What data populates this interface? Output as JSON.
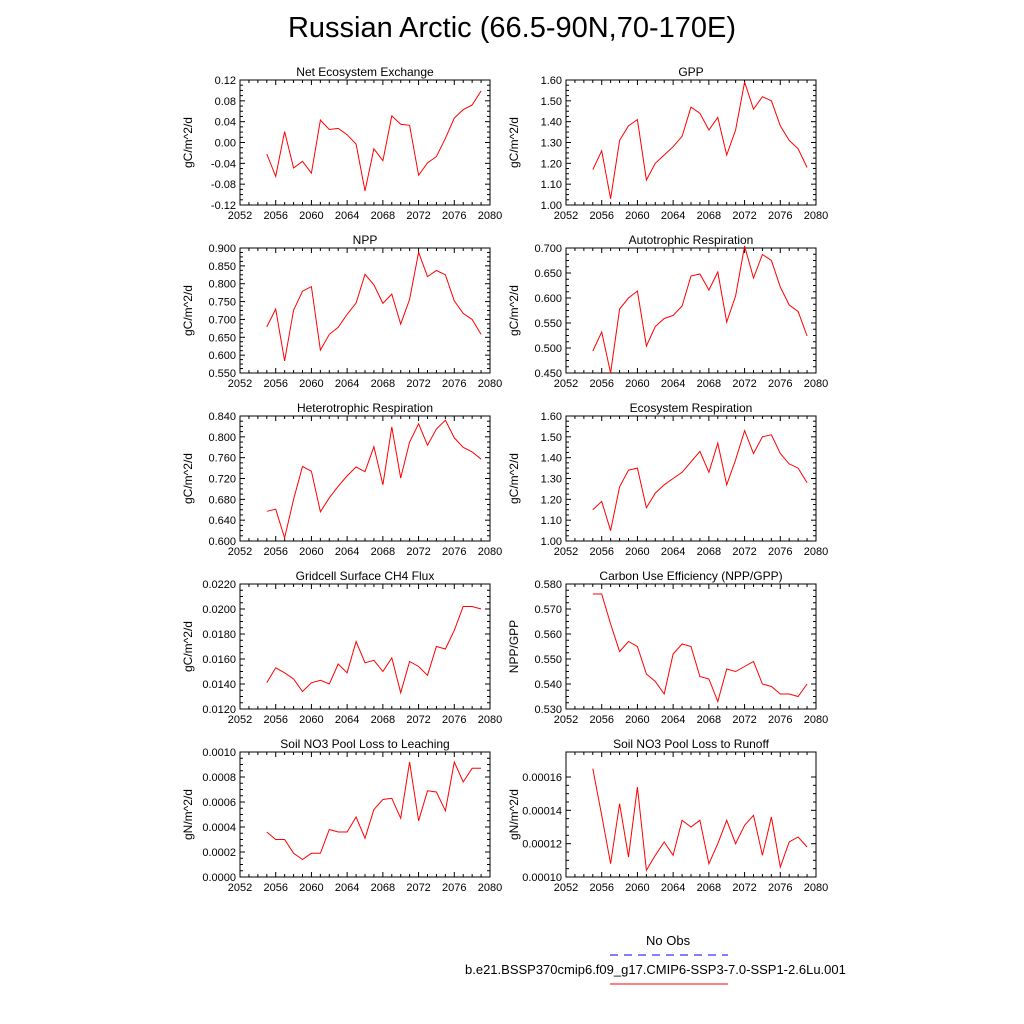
{
  "figure": {
    "title": "Russian Arctic (66.5-90N,70-170E)"
  },
  "legend": {
    "items": [
      {
        "label": "No Obs",
        "color": "#0000ff",
        "style": "dashed"
      },
      {
        "label": "b.e21.BSSP370cmip6.f09_g17.CMIP6-SSP3-7.0-SSP1-2.6Lu.001",
        "color": "#ff0000",
        "style": "solid"
      }
    ]
  },
  "chart_data": [
    {
      "type": "line",
      "title": "Net Ecosystem Exchange",
      "ylabel": "gC/m^2/d",
      "xlim": [
        2052,
        2080
      ],
      "ylim": [
        -0.12,
        0.12
      ],
      "xticks": [
        "2052",
        "2056",
        "2060",
        "2064",
        "2068",
        "2072",
        "2076",
        "2080"
      ],
      "yticks": [
        "-0.12",
        "-0.08",
        "-0.04",
        "0.00",
        "0.04",
        "0.08",
        "0.12"
      ],
      "line_color": "#ff0000",
      "x": [
        2055,
        2056,
        2057,
        2058,
        2059,
        2060,
        2061,
        2062,
        2063,
        2064,
        2065,
        2066,
        2067,
        2068,
        2069,
        2070,
        2071,
        2072,
        2073,
        2074,
        2075,
        2076,
        2077,
        2078,
        2079
      ],
      "y": [
        -0.022,
        -0.065,
        0.021,
        -0.049,
        -0.036,
        -0.059,
        0.043,
        0.025,
        0.027,
        0.015,
        -0.003,
        -0.093,
        -0.012,
        -0.035,
        0.051,
        0.035,
        0.033,
        -0.063,
        -0.039,
        -0.027,
        0.008,
        0.047,
        0.063,
        0.072,
        0.099
      ]
    },
    {
      "type": "line",
      "title": "GPP",
      "ylabel": "gC/m^2/d",
      "xlim": [
        2052,
        2080
      ],
      "ylim": [
        1.0,
        1.6
      ],
      "xticks": [
        "2052",
        "2056",
        "2060",
        "2064",
        "2068",
        "2072",
        "2076",
        "2080"
      ],
      "yticks": [
        "1.00",
        "1.10",
        "1.20",
        "1.30",
        "1.40",
        "1.50",
        "1.60"
      ],
      "line_color": "#ff0000",
      "x": [
        2055,
        2056,
        2057,
        2058,
        2059,
        2060,
        2061,
        2062,
        2063,
        2064,
        2065,
        2066,
        2067,
        2068,
        2069,
        2070,
        2071,
        2072,
        2073,
        2074,
        2075,
        2076,
        2077,
        2078,
        2079
      ],
      "y": [
        1.17,
        1.26,
        1.03,
        1.31,
        1.38,
        1.41,
        1.12,
        1.2,
        1.24,
        1.28,
        1.33,
        1.47,
        1.44,
        1.36,
        1.42,
        1.24,
        1.36,
        1.59,
        1.46,
        1.52,
        1.5,
        1.38,
        1.31,
        1.27,
        1.18
      ]
    },
    {
      "type": "line",
      "title": "NPP",
      "ylabel": "gC/m^2/d",
      "xlim": [
        2052,
        2080
      ],
      "ylim": [
        0.55,
        0.9
      ],
      "xticks": [
        "2052",
        "2056",
        "2060",
        "2064",
        "2068",
        "2072",
        "2076",
        "2080"
      ],
      "yticks": [
        "0.550",
        "0.600",
        "0.650",
        "0.700",
        "0.750",
        "0.800",
        "0.850",
        "0.900"
      ],
      "line_color": "#ff0000",
      "x": [
        2055,
        2056,
        2057,
        2058,
        2059,
        2060,
        2061,
        2062,
        2063,
        2064,
        2065,
        2066,
        2067,
        2068,
        2069,
        2070,
        2071,
        2072,
        2073,
        2074,
        2075,
        2076,
        2077,
        2078,
        2079
      ],
      "y": [
        0.679,
        0.729,
        0.584,
        0.726,
        0.779,
        0.792,
        0.614,
        0.658,
        0.678,
        0.714,
        0.746,
        0.826,
        0.797,
        0.745,
        0.771,
        0.687,
        0.756,
        0.888,
        0.82,
        0.837,
        0.825,
        0.752,
        0.717,
        0.7,
        0.658
      ]
    },
    {
      "type": "line",
      "title": "Autotrophic Respiration",
      "ylabel": "gC/m^2/d",
      "xlim": [
        2052,
        2080
      ],
      "ylim": [
        0.45,
        0.7
      ],
      "xticks": [
        "2052",
        "2056",
        "2060",
        "2064",
        "2068",
        "2072",
        "2076",
        "2080"
      ],
      "yticks": [
        "0.450",
        "0.500",
        "0.550",
        "0.600",
        "0.650",
        "0.700"
      ],
      "line_color": "#ff0000",
      "x": [
        2055,
        2056,
        2057,
        2058,
        2059,
        2060,
        2061,
        2062,
        2063,
        2064,
        2065,
        2066,
        2067,
        2068,
        2069,
        2070,
        2071,
        2072,
        2073,
        2074,
        2075,
        2076,
        2077,
        2078,
        2079
      ],
      "y": [
        0.494,
        0.532,
        0.45,
        0.578,
        0.6,
        0.614,
        0.504,
        0.543,
        0.559,
        0.565,
        0.584,
        0.644,
        0.648,
        0.616,
        0.652,
        0.552,
        0.604,
        0.704,
        0.64,
        0.687,
        0.675,
        0.622,
        0.586,
        0.573,
        0.524
      ]
    },
    {
      "type": "line",
      "title": "Heterotrophic Respiration",
      "ylabel": "gC/m^2/d",
      "xlim": [
        2052,
        2080
      ],
      "ylim": [
        0.6,
        0.84
      ],
      "xticks": [
        "2052",
        "2056",
        "2060",
        "2064",
        "2068",
        "2072",
        "2076",
        "2080"
      ],
      "yticks": [
        "0.600",
        "0.640",
        "0.680",
        "0.720",
        "0.760",
        "0.800",
        "0.840"
      ],
      "line_color": "#ff0000",
      "x": [
        2055,
        2056,
        2057,
        2058,
        2059,
        2060,
        2061,
        2062,
        2063,
        2064,
        2065,
        2066,
        2067,
        2068,
        2069,
        2070,
        2071,
        2072,
        2073,
        2074,
        2075,
        2076,
        2077,
        2078,
        2079
      ],
      "y": [
        0.657,
        0.661,
        0.606,
        0.68,
        0.743,
        0.734,
        0.656,
        0.683,
        0.705,
        0.725,
        0.742,
        0.733,
        0.781,
        0.708,
        0.819,
        0.721,
        0.79,
        0.825,
        0.784,
        0.815,
        0.832,
        0.798,
        0.78,
        0.771,
        0.757
      ]
    },
    {
      "type": "line",
      "title": "Ecosystem Respiration",
      "ylabel": "gC/m^2/d",
      "xlim": [
        2052,
        2080
      ],
      "ylim": [
        1.0,
        1.6
      ],
      "xticks": [
        "2052",
        "2056",
        "2060",
        "2064",
        "2068",
        "2072",
        "2076",
        "2080"
      ],
      "yticks": [
        "1.00",
        "1.10",
        "1.20",
        "1.30",
        "1.40",
        "1.50",
        "1.60"
      ],
      "line_color": "#ff0000",
      "x": [
        2055,
        2056,
        2057,
        2058,
        2059,
        2060,
        2061,
        2062,
        2063,
        2064,
        2065,
        2066,
        2067,
        2068,
        2069,
        2070,
        2071,
        2072,
        2073,
        2074,
        2075,
        2076,
        2077,
        2078,
        2079
      ],
      "y": [
        1.15,
        1.19,
        1.05,
        1.26,
        1.34,
        1.35,
        1.16,
        1.23,
        1.27,
        1.3,
        1.33,
        1.38,
        1.43,
        1.33,
        1.47,
        1.27,
        1.39,
        1.53,
        1.42,
        1.5,
        1.51,
        1.42,
        1.37,
        1.35,
        1.28
      ]
    },
    {
      "type": "line",
      "title": "Gridcell Surface CH4 Flux",
      "ylabel": "gC/m^2/d",
      "xlim": [
        2052,
        2080
      ],
      "ylim": [
        0.012,
        0.022
      ],
      "xticks": [
        "2052",
        "2056",
        "2060",
        "2064",
        "2068",
        "2072",
        "2076",
        "2080"
      ],
      "yticks": [
        "0.0120",
        "0.0140",
        "0.0160",
        "0.0180",
        "0.0200",
        "0.0220"
      ],
      "line_color": "#ff0000",
      "x": [
        2055,
        2056,
        2057,
        2058,
        2059,
        2060,
        2061,
        2062,
        2063,
        2064,
        2065,
        2066,
        2067,
        2068,
        2069,
        2070,
        2071,
        2072,
        2073,
        2074,
        2075,
        2076,
        2077,
        2078,
        2079
      ],
      "y": [
        0.0141,
        0.0153,
        0.0149,
        0.0144,
        0.0134,
        0.0141,
        0.0143,
        0.014,
        0.0156,
        0.0149,
        0.0174,
        0.0157,
        0.0159,
        0.015,
        0.0161,
        0.0133,
        0.0158,
        0.0154,
        0.0147,
        0.017,
        0.0168,
        0.0183,
        0.0202,
        0.0202,
        0.02
      ]
    },
    {
      "type": "line",
      "title": "Carbon Use Efficiency (NPP/GPP)",
      "ylabel": "NPP/GPP",
      "xlim": [
        2052,
        2080
      ],
      "ylim": [
        0.53,
        0.58
      ],
      "xticks": [
        "2052",
        "2056",
        "2060",
        "2064",
        "2068",
        "2072",
        "2076",
        "2080"
      ],
      "yticks": [
        "0.530",
        "0.540",
        "0.550",
        "0.560",
        "0.570",
        "0.580"
      ],
      "line_color": "#ff0000",
      "x": [
        2055,
        2056,
        2057,
        2058,
        2059,
        2060,
        2061,
        2062,
        2063,
        2064,
        2065,
        2066,
        2067,
        2068,
        2069,
        2070,
        2071,
        2072,
        2073,
        2074,
        2075,
        2076,
        2077,
        2078,
        2079
      ],
      "y": [
        0.576,
        0.576,
        0.564,
        0.553,
        0.557,
        0.555,
        0.544,
        0.541,
        0.536,
        0.552,
        0.556,
        0.555,
        0.543,
        0.542,
        0.533,
        0.546,
        0.545,
        0.547,
        0.549,
        0.54,
        0.539,
        0.536,
        0.536,
        0.535,
        0.54
      ]
    },
    {
      "type": "line",
      "title": "Soil NO3 Pool Loss to Leaching",
      "ylabel": "gN/m^2/d",
      "xlim": [
        2052,
        2080
      ],
      "ylim": [
        0.0,
        0.001
      ],
      "xticks": [
        "2052",
        "2056",
        "2060",
        "2064",
        "2068",
        "2072",
        "2076",
        "2080"
      ],
      "yticks": [
        "0.0000",
        "0.0002",
        "0.0004",
        "0.0006",
        "0.0008",
        "0.0010"
      ],
      "line_color": "#ff0000",
      "x": [
        2055,
        2056,
        2057,
        2058,
        2059,
        2060,
        2061,
        2062,
        2063,
        2064,
        2065,
        2066,
        2067,
        2068,
        2069,
        2070,
        2071,
        2072,
        2073,
        2074,
        2075,
        2076,
        2077,
        2078,
        2079
      ],
      "y": [
        0.00036,
        0.0003,
        0.0003,
        0.00019,
        0.00014,
        0.00019,
        0.00019,
        0.00038,
        0.00036,
        0.00036,
        0.00048,
        0.00031,
        0.00054,
        0.00062,
        0.00063,
        0.00047,
        0.00092,
        0.00045,
        0.00069,
        0.00068,
        0.00053,
        0.00092,
        0.00076,
        0.00087,
        0.00087
      ]
    },
    {
      "type": "line",
      "title": "Soil NO3 Pool Loss to Runoff",
      "ylabel": "gN/m^2/d",
      "xlim": [
        2052,
        2080
      ],
      "ylim": [
        0.0001,
        0.000175
      ],
      "xticks": [
        "2052",
        "2056",
        "2060",
        "2064",
        "2068",
        "2072",
        "2076",
        "2080"
      ],
      "yticks": [
        "0.00010",
        "0.00012",
        "0.00014",
        "0.00016"
      ],
      "line_color": "#ff0000",
      "x": [
        2055,
        2056,
        2057,
        2058,
        2059,
        2060,
        2061,
        2062,
        2063,
        2064,
        2065,
        2066,
        2067,
        2068,
        2069,
        2070,
        2071,
        2072,
        2073,
        2074,
        2075,
        2076,
        2077,
        2078,
        2079
      ],
      "y": [
        0.000165,
        0.000137,
        0.000108,
        0.000144,
        0.000112,
        0.000154,
        0.000104,
        0.000113,
        0.000121,
        0.000113,
        0.000134,
        0.00013,
        0.000134,
        0.000108,
        0.00012,
        0.000134,
        0.00012,
        0.000131,
        0.000137,
        0.000113,
        0.000136,
        0.000106,
        0.000121,
        0.000124,
        0.000118
      ]
    }
  ]
}
